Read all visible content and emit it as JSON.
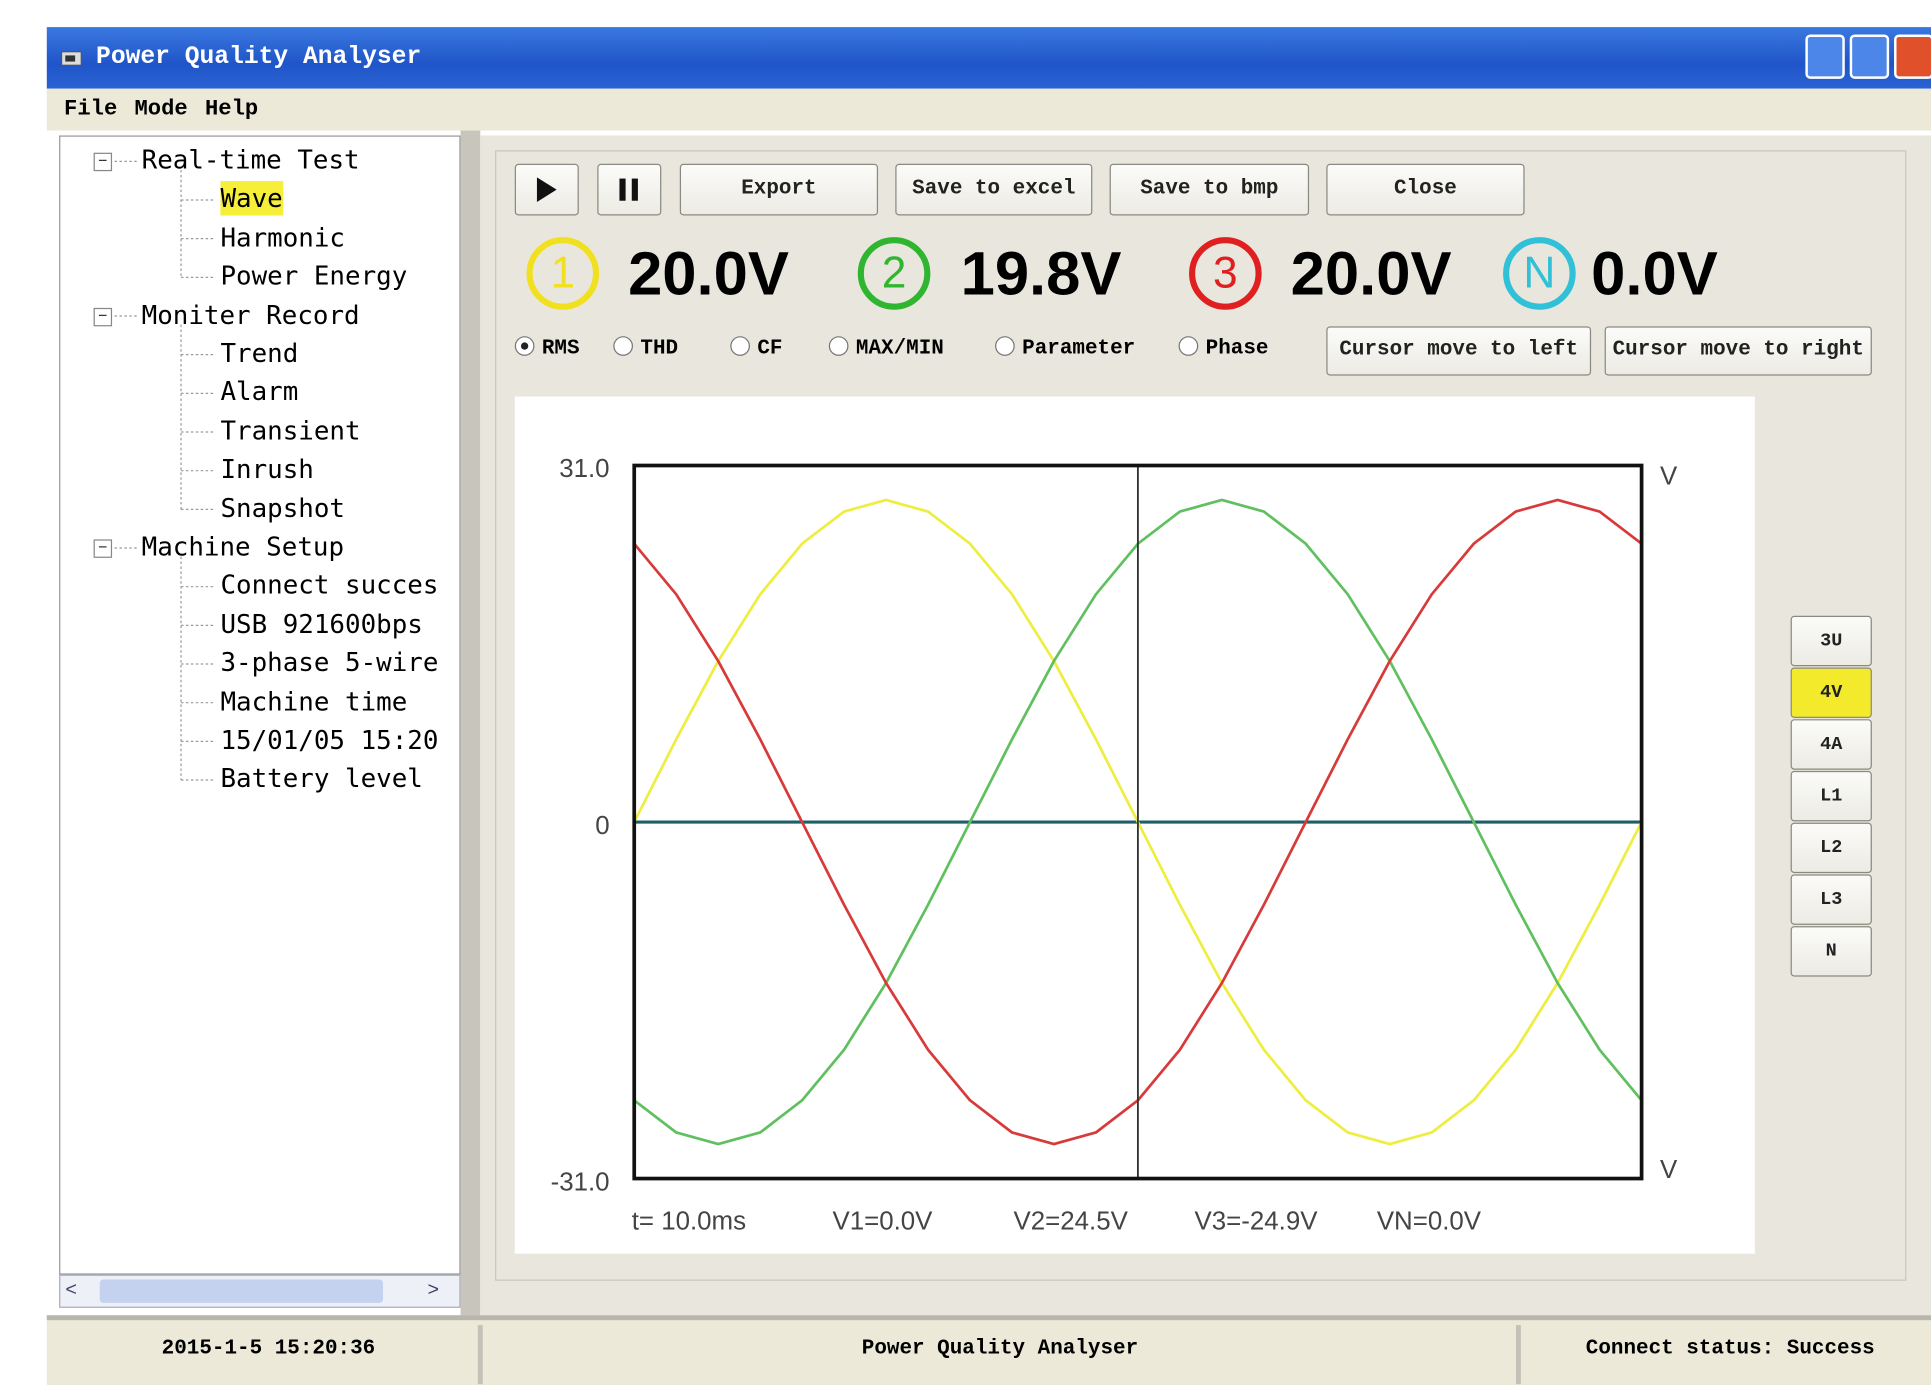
{
  "window": {
    "title": "Power Quality Analyser"
  },
  "menu": [
    "File",
    "Mode",
    "Help"
  ],
  "tree": [
    {
      "label": "Real-time Test",
      "children": [
        "Wave",
        "Harmonic",
        "Power Energy"
      ]
    },
    {
      "label": "Moniter Record",
      "children": [
        "Trend",
        "Alarm",
        "Transient",
        "Inrush",
        "Snapshot"
      ]
    },
    {
      "label": "Machine Setup",
      "children": [
        "Connect succes",
        "USB 921600bps",
        "3-phase 5-wire",
        "Machine time",
        "15/01/05 15:20",
        "Battery level"
      ]
    }
  ],
  "toolbar": [
    "Export",
    "Save to excel",
    "Save to bmp",
    "Close"
  ],
  "channels": [
    {
      "label": "1",
      "value": "20.0V",
      "color": "#f0e020"
    },
    {
      "label": "2",
      "value": "19.8V",
      "color": "#2fb52f"
    },
    {
      "label": "3",
      "value": "20.0V",
      "color": "#e02020"
    },
    {
      "label": "N",
      "value": "0.0V",
      "color": "#30c0d8"
    }
  ],
  "modes": [
    "RMS",
    "THD",
    "CF",
    "MAX/MIN",
    "Parameter",
    "Phase"
  ],
  "cursor_buttons": [
    "Cursor move to left",
    "Cursor move to right"
  ],
  "chart_data": {
    "type": "line",
    "ylim": [
      -31,
      31
    ],
    "yticks": [
      {
        "value": 31,
        "label": "31.0"
      },
      0,
      {
        "value": -31,
        "label": "-31.0"
      }
    ],
    "y_unit": "V",
    "series": [
      {
        "color": "#eeee40",
        "values": [
          0,
          7.2,
          14,
          19.8,
          24.2,
          27,
          28,
          27,
          24.2,
          19.8,
          14,
          7.2,
          0,
          -7.2,
          -14,
          -19.8,
          -24.2,
          -27,
          -28,
          -27,
          -24.2,
          -19.8,
          -14,
          -7.2,
          0
        ]
      },
      {
        "color": "#60c060",
        "values": [
          -24.2,
          -27,
          -28,
          -27,
          -24.2,
          -19.8,
          -14,
          -7.2,
          0,
          7.2,
          14,
          19.8,
          24.2,
          27,
          28,
          27,
          24.2,
          19.8,
          14,
          7.2,
          0,
          -7.2,
          -14,
          -19.8,
          -24.2
        ]
      },
      {
        "color": "#d83a3a",
        "values": [
          24.2,
          19.8,
          14,
          7.2,
          0,
          -7.2,
          -14,
          -19.8,
          -24.2,
          -27,
          -28,
          -27,
          -24.2,
          -19.8,
          -14,
          -7.2,
          0,
          7.2,
          14,
          19.8,
          24.2,
          27,
          28,
          27,
          24.2
        ]
      }
    ],
    "readouts": [
      "t= 10.0ms",
      "V1=0.0V",
      "V2=24.5V",
      "V3=-24.9V",
      "VN=0.0V"
    ]
  },
  "side_buttons": [
    "3U",
    "4V",
    "4A",
    "L1",
    "L2",
    "L3",
    "N"
  ],
  "status": [
    "2015-1-5 15:20:36",
    "Power Quality Analyser",
    "Connect status: Success"
  ]
}
